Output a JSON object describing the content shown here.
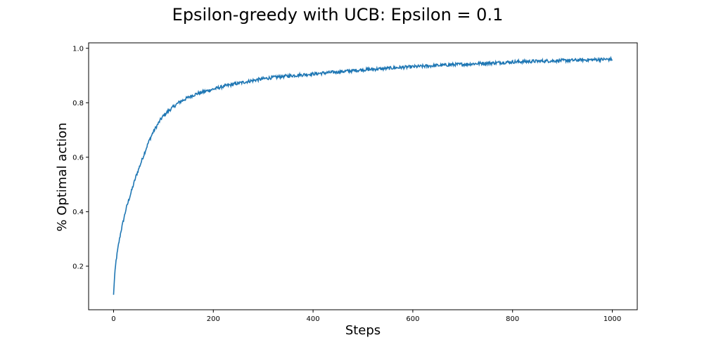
{
  "chart_data": {
    "type": "line",
    "title": "Epsilon-greedy with UCB: Epsilon = 0.1",
    "xlabel": "Steps",
    "ylabel": "% Optimal action",
    "xlim": [
      -50,
      1050
    ],
    "ylim": [
      0.04,
      1.02
    ],
    "grid": false,
    "legend": "none",
    "xticks": [
      0,
      200,
      400,
      600,
      800,
      1000
    ],
    "yticks": [
      0.2,
      0.4,
      0.6,
      0.8,
      1.0
    ],
    "xtick_labels": [
      "0",
      "200",
      "400",
      "600",
      "800",
      "1000"
    ],
    "ytick_labels": [
      "0.2",
      "0.4",
      "0.6",
      "0.8",
      "1.0"
    ],
    "series": [
      {
        "color": "#1f77b4",
        "x": [
          0,
          2,
          5,
          10,
          15,
          20,
          25,
          30,
          35,
          40,
          45,
          50,
          55,
          60,
          65,
          70,
          75,
          80,
          85,
          90,
          95,
          100,
          110,
          120,
          130,
          140,
          150,
          160,
          170,
          180,
          190,
          200,
          220,
          240,
          260,
          280,
          300,
          320,
          340,
          360,
          380,
          400,
          420,
          440,
          460,
          480,
          500,
          520,
          540,
          560,
          580,
          600,
          620,
          640,
          660,
          680,
          700,
          720,
          740,
          760,
          780,
          800,
          820,
          840,
          860,
          880,
          900,
          920,
          940,
          960,
          980,
          1000
        ],
        "y": [
          0.095,
          0.16,
          0.22,
          0.28,
          0.33,
          0.37,
          0.41,
          0.44,
          0.47,
          0.5,
          0.53,
          0.555,
          0.58,
          0.605,
          0.63,
          0.655,
          0.675,
          0.695,
          0.71,
          0.725,
          0.74,
          0.752,
          0.77,
          0.785,
          0.8,
          0.81,
          0.82,
          0.828,
          0.835,
          0.84,
          0.845,
          0.85,
          0.86,
          0.868,
          0.875,
          0.882,
          0.888,
          0.893,
          0.897,
          0.9,
          0.903,
          0.906,
          0.909,
          0.912,
          0.915,
          0.918,
          0.921,
          0.923,
          0.925,
          0.928,
          0.93,
          0.932,
          0.934,
          0.936,
          0.938,
          0.94,
          0.941,
          0.943,
          0.945,
          0.946,
          0.948,
          0.95,
          0.951,
          0.952,
          0.953,
          0.954,
          0.955,
          0.956,
          0.957,
          0.958,
          0.959,
          0.96
        ]
      }
    ]
  }
}
